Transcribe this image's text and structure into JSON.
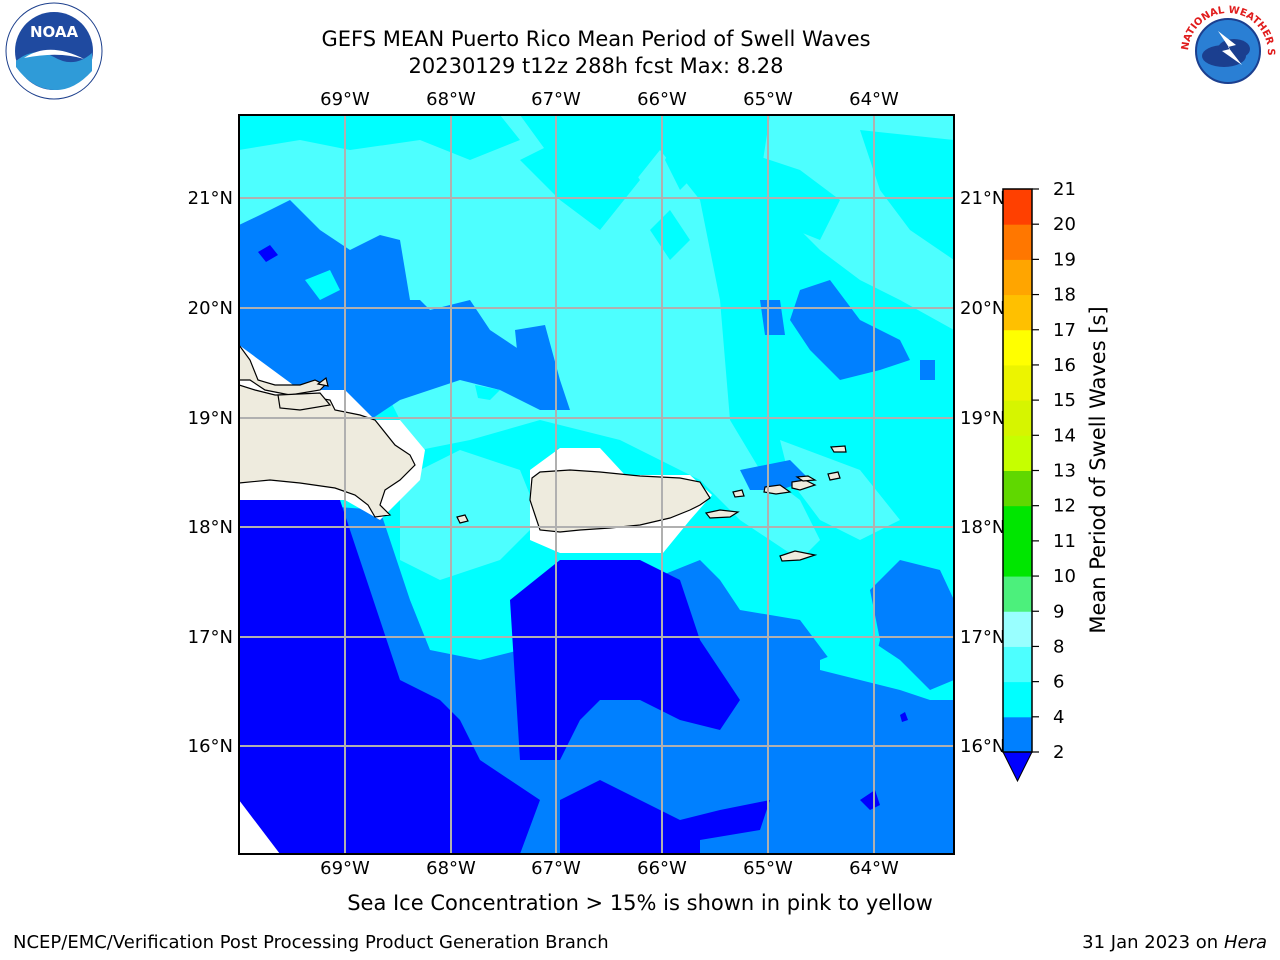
{
  "header": {
    "title_line1": "GEFS MEAN Puerto Rico Mean Period of Swell Waves",
    "title_line2": "20230129 t12z 288h fcst   Max: 8.28"
  },
  "map": {
    "lon_labels": [
      "69°W",
      "68°W",
      "67°W",
      "66°W",
      "65°W",
      "64°W"
    ],
    "lat_labels": [
      "21°N",
      "20°N",
      "19°N",
      "18°N",
      "17°N",
      "16°N"
    ],
    "colors": {
      "land": "#eeebde",
      "band_2_4": "#0080ff",
      "band_4_6": "#00ffff",
      "band_6_8": "#4dffff",
      "below_2": "#0000ff",
      "grid": "#b0b0b0"
    }
  },
  "colorbar": {
    "label": "Mean Period of Swell Waves [s]",
    "ticks": [
      "2",
      "4",
      "6",
      "8",
      "9",
      "10",
      "11",
      "12",
      "13",
      "14",
      "15",
      "16",
      "17",
      "18",
      "19",
      "20",
      "21"
    ],
    "colors": [
      "#0080ff",
      "#00ffff",
      "#4dffff",
      "#99ffff",
      "#4cf07c",
      "#00e600",
      "#00e600",
      "#60d800",
      "#c6ff00",
      "#d6f500",
      "#ecf400",
      "#ffff00",
      "#ffc000",
      "#ffa500",
      "#ff7700",
      "#ff4000",
      "#ff0000"
    ]
  },
  "notes": {
    "ice": "Sea Ice Concentration > 15% is shown in pink to yellow"
  },
  "footer": {
    "left": "NCEP/EMC/Verification Post Processing Product Generation Branch",
    "right_date": "31 Jan 2023 on ",
    "right_machine": "Hera"
  },
  "logos": {
    "noaa_text": "NOAA",
    "nws_text": "NATIONAL WEATHER SERVICE"
  }
}
